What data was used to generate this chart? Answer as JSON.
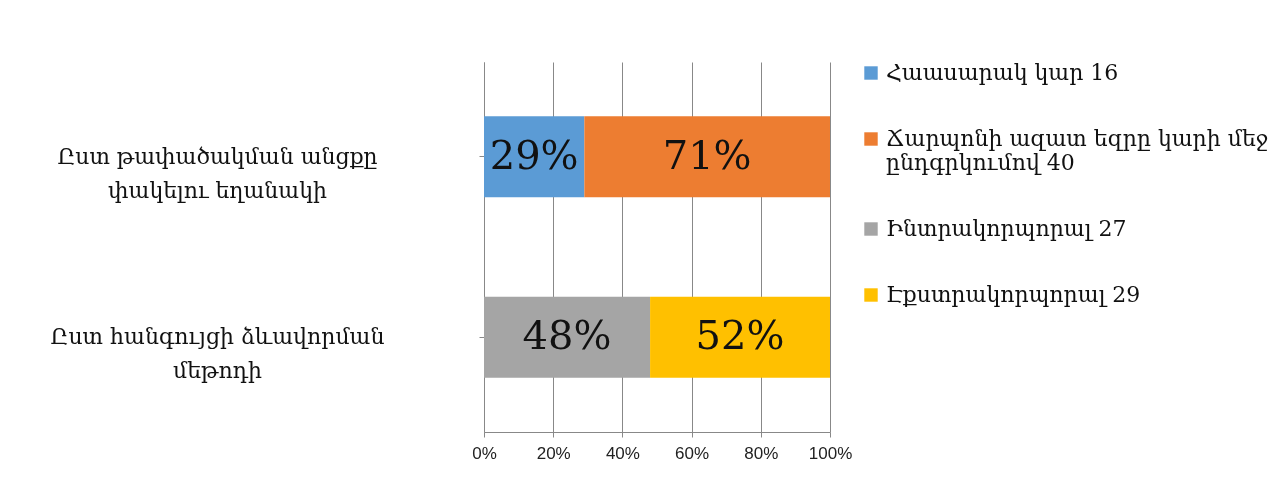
{
  "chart_data": {
    "type": "bar",
    "orientation": "horizontal",
    "stacked": true,
    "categories": [
      "Ըստ թափածակման անցքը փակելու եղանակի",
      "Ըստ հանգույցի ձևավորման մեթոդի"
    ],
    "series": [
      {
        "name": "Հաասարակ կար 16",
        "color": "#5b9bd5",
        "values": [
          29,
          null
        ],
        "value_labels": [
          "29%",
          null
        ]
      },
      {
        "name": "Ճարպոնի ազատ եզրը կարի մեջ ընդգրկումով 40",
        "color": "#ed7d31",
        "values": [
          71,
          null
        ],
        "value_labels": [
          "71%",
          null
        ]
      },
      {
        "name": "Ինտրակորպորալ 27",
        "color": "#a5a5a5",
        "values": [
          null,
          48
        ],
        "value_labels": [
          null,
          "48%"
        ]
      },
      {
        "name": "Էքստրակորպորալ 29",
        "color": "#ffc000",
        "values": [
          null,
          52
        ],
        "value_labels": [
          null,
          "52%"
        ]
      }
    ],
    "xlim": [
      0,
      100
    ],
    "xticks": [
      {
        "value": 0,
        "label": "0%"
      },
      {
        "value": 20,
        "label": "20%"
      },
      {
        "value": 40,
        "label": "40%"
      },
      {
        "value": 60,
        "label": "60%"
      },
      {
        "value": 80,
        "label": "80%"
      },
      {
        "value": 100,
        "label": "100%"
      }
    ],
    "grid": "x",
    "legend": "right"
  }
}
